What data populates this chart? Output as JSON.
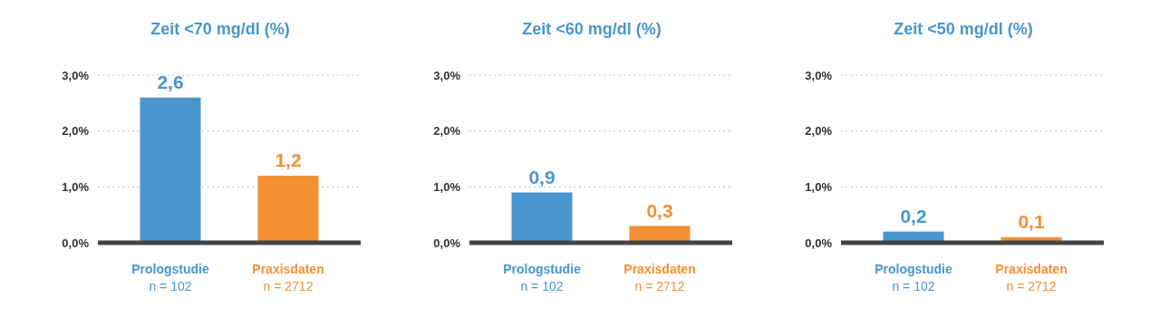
{
  "chart_data": [
    {
      "type": "bar",
      "title": "Zeit <70 mg/dl (%)",
      "categories": [
        "Prologstudie\nn = 102",
        "Praxisdaten\nn = 2712"
      ],
      "values": [
        2.6,
        1.2
      ],
      "colors": [
        "#4a96cf",
        "#f39033"
      ],
      "value_labels": [
        "2,6",
        "1,2"
      ],
      "ylim": [
        0,
        3
      ],
      "yticks": [
        {
          "value": 0,
          "label": "0,0%"
        },
        {
          "value": 1,
          "label": "1,0%"
        },
        {
          "value": 2,
          "label": "2,0%"
        },
        {
          "value": 3,
          "label": "3,0%"
        }
      ],
      "grid": "y"
    },
    {
      "type": "bar",
      "title": "Zeit <60 mg/dl (%)",
      "categories": [
        "Prologstudie\nn = 102",
        "Praxisdaten\nn = 2712"
      ],
      "values": [
        0.9,
        0.3
      ],
      "colors": [
        "#4a96cf",
        "#f39033"
      ],
      "value_labels": [
        "0,9",
        "0,3"
      ],
      "ylim": [
        0,
        3
      ],
      "yticks": [
        {
          "value": 0,
          "label": "0,0%"
        },
        {
          "value": 1,
          "label": "1,0%"
        },
        {
          "value": 2,
          "label": "2,0%"
        },
        {
          "value": 3,
          "label": "3,0%"
        }
      ],
      "grid": "y"
    },
    {
      "type": "bar",
      "title": "Zeit <50 mg/dl (%)",
      "categories": [
        "Prologstudie\nn = 102",
        "Praxisdaten\nn = 2712"
      ],
      "values": [
        0.2,
        0.1
      ],
      "colors": [
        "#4a96cf",
        "#f39033"
      ],
      "value_labels": [
        "0,2",
        "0,1"
      ],
      "ylim": [
        0,
        3
      ],
      "yticks": [
        {
          "value": 0,
          "label": "0,0%"
        },
        {
          "value": 1,
          "label": "1,0%"
        },
        {
          "value": 2,
          "label": "2,0%"
        },
        {
          "value": 3,
          "label": "3,0%"
        }
      ],
      "grid": "y"
    }
  ]
}
